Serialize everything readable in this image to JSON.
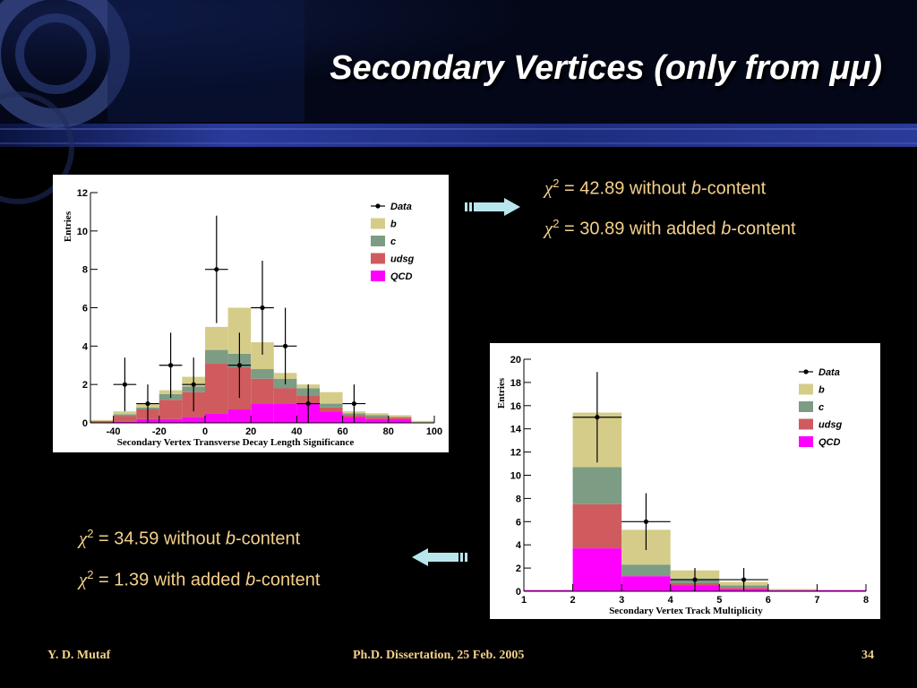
{
  "slide": {
    "title": "Secondary Vertices (only from μμ)",
    "footer_left": "Y. D. Mutaf",
    "footer_center": "Ph.D. Dissertation, 25 Feb. 2005",
    "footer_right": "34",
    "colors": {
      "text_accent": "#f4d08a",
      "arrow": "#b8e6ec",
      "bg_blue": "#1b2a78"
    }
  },
  "chi_top": {
    "symbol": "χ",
    "sup": "2",
    "line1": {
      "pre": " = 42.89 without ",
      "b": "b",
      "post": "-content"
    },
    "line2": {
      "pre": " = 30.89 with added ",
      "b": "b",
      "post": "-content"
    }
  },
  "chi_bottom": {
    "symbol": "χ",
    "sup": "2",
    "line1": {
      "pre": " = 34.59 without ",
      "b": "b",
      "post": "-content"
    },
    "line2": {
      "pre": " = 1.39 with added ",
      "b": "b",
      "post": "-content"
    }
  },
  "chart_data": [
    {
      "type": "bar",
      "stacked": true,
      "xlabel": "Secondary Vertex Transverse Decay Length Significance",
      "ylabel": "Entries",
      "xlim": [
        -50,
        100
      ],
      "ylim": [
        0,
        12
      ],
      "xticks": [
        -40,
        -20,
        0,
        20,
        40,
        60,
        80,
        100
      ],
      "yticks": [
        0,
        2,
        4,
        6,
        8,
        10,
        12
      ],
      "bin_edges": [
        -50,
        -40,
        -30,
        -20,
        -10,
        0,
        10,
        20,
        30,
        40,
        50,
        60,
        70,
        80,
        90,
        100
      ],
      "legend_position": "top-right",
      "series": [
        {
          "name": "QCD",
          "color": "#ff00ff",
          "values": [
            0,
            0.05,
            0.2,
            0.2,
            0.3,
            0.5,
            0.7,
            1.0,
            1.0,
            1.0,
            0.6,
            0.3,
            0.2,
            0.2,
            0
          ]
        },
        {
          "name": "udsg",
          "color": "#cf5b5e",
          "values": [
            0.1,
            0.3,
            0.5,
            1.0,
            1.3,
            2.6,
            2.2,
            1.3,
            0.8,
            0.4,
            0.2,
            0.1,
            0.1,
            0.1,
            0
          ]
        },
        {
          "name": "c",
          "color": "#7c9c84",
          "values": [
            0,
            0.1,
            0.1,
            0.3,
            0.3,
            0.7,
            0.7,
            0.5,
            0.5,
            0.4,
            0.2,
            0.1,
            0.1,
            0,
            0
          ]
        },
        {
          "name": "b",
          "color": "#d6cc8a",
          "values": [
            0.05,
            0.15,
            0.2,
            0.2,
            0.5,
            1.2,
            2.4,
            1.4,
            0.3,
            0.2,
            0.6,
            0.1,
            0.1,
            0.1,
            0.1
          ]
        }
      ],
      "data_points": {
        "name": "Data",
        "x": [
          -35,
          -25,
          -15,
          -5,
          5,
          15,
          25,
          35,
          45,
          65
        ],
        "y": [
          2,
          1,
          3,
          2,
          8,
          3,
          6,
          4,
          1,
          1
        ],
        "yerr": [
          1.4,
          1.0,
          1.7,
          1.4,
          2.8,
          1.7,
          2.45,
          2.0,
          1.0,
          1.0
        ]
      }
    },
    {
      "type": "bar",
      "stacked": true,
      "xlabel": "Secondary Vertex Track Multiplicity",
      "ylabel": "Entries",
      "xlim": [
        1,
        8
      ],
      "ylim": [
        0,
        20
      ],
      "xticks": [
        1,
        2,
        3,
        4,
        5,
        6,
        7,
        8
      ],
      "yticks": [
        0,
        2,
        4,
        6,
        8,
        10,
        12,
        14,
        16,
        18,
        20
      ],
      "bin_edges": [
        1,
        2,
        3,
        4,
        5,
        6,
        7,
        8
      ],
      "legend_position": "top-right",
      "series": [
        {
          "name": "QCD",
          "color": "#ff00ff",
          "values": [
            0.1,
            3.7,
            1.3,
            0.5,
            0.2,
            0.1,
            0.1
          ]
        },
        {
          "name": "udsg",
          "color": "#cf5b5e",
          "values": [
            0,
            3.8,
            0,
            0.2,
            0.1,
            0,
            0
          ]
        },
        {
          "name": "c",
          "color": "#7c9c84",
          "values": [
            0,
            3.2,
            1.0,
            0.4,
            0.2,
            0,
            0
          ]
        },
        {
          "name": "b",
          "color": "#d6cc8a",
          "values": [
            0,
            4.7,
            3.0,
            0.7,
            0.3,
            0.1,
            0
          ]
        }
      ],
      "data_points": {
        "name": "Data",
        "x": [
          2.5,
          3.5,
          4.5,
          5.5
        ],
        "y": [
          15,
          6,
          1,
          1
        ],
        "yerr": [
          3.9,
          2.45,
          1.0,
          1.0
        ]
      }
    }
  ]
}
